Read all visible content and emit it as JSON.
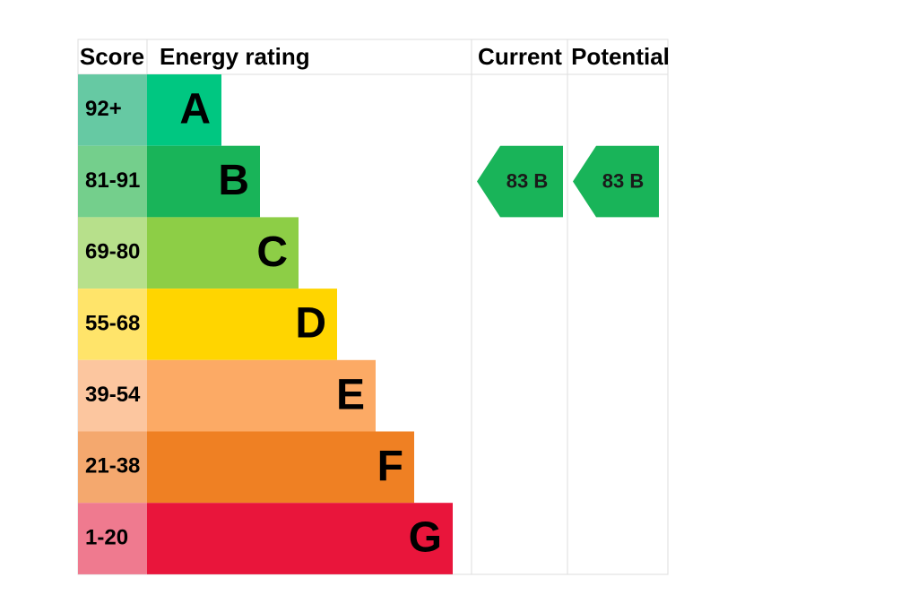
{
  "header": {
    "score": "Score",
    "energy_rating": "Energy rating",
    "current": "Current",
    "potential": "Potential"
  },
  "rows": [
    {
      "score": "92+",
      "letter": "A"
    },
    {
      "score": "81-91",
      "letter": "B"
    },
    {
      "score": "69-80",
      "letter": "C"
    },
    {
      "score": "55-68",
      "letter": "D"
    },
    {
      "score": "39-54",
      "letter": "E"
    },
    {
      "score": "21-38",
      "letter": "F"
    },
    {
      "score": "1-20",
      "letter": "G"
    }
  ],
  "current": {
    "label": "83 B"
  },
  "potential": {
    "label": "83 B"
  }
}
